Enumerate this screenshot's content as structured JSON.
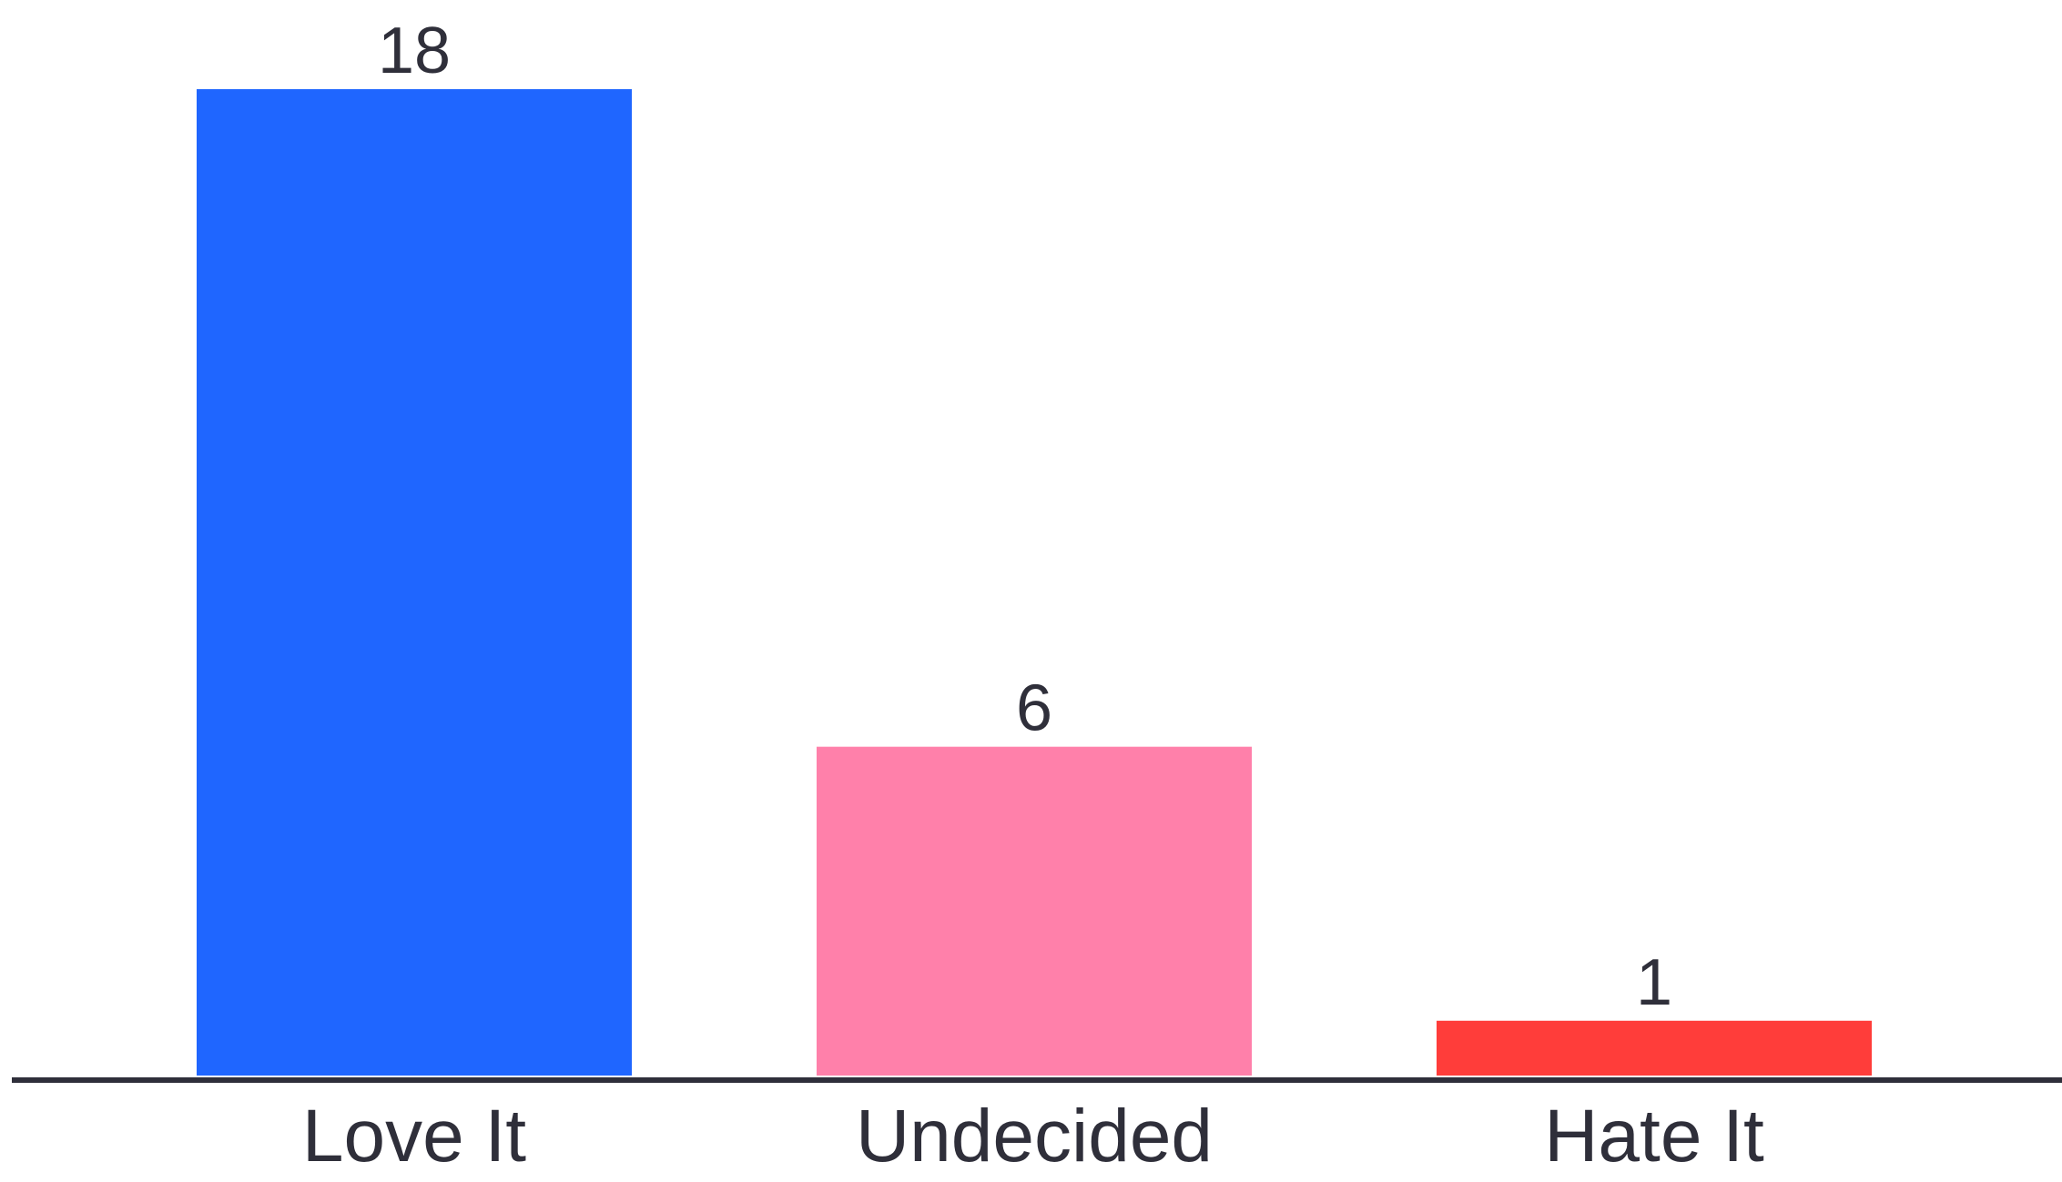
{
  "chart_data": {
    "type": "bar",
    "categories": [
      "Love It",
      "Undecided",
      "Hate It"
    ],
    "values": [
      18,
      6,
      1
    ],
    "data_labels": [
      "18",
      "6",
      "1"
    ],
    "colors": [
      "#1f66ff",
      "#ff80aa",
      "#ff3d3a"
    ],
    "axis_color": "#2f2f3a",
    "ylim": [
      0,
      18
    ],
    "grid": false,
    "title": "",
    "xlabel": "",
    "ylabel": ""
  }
}
